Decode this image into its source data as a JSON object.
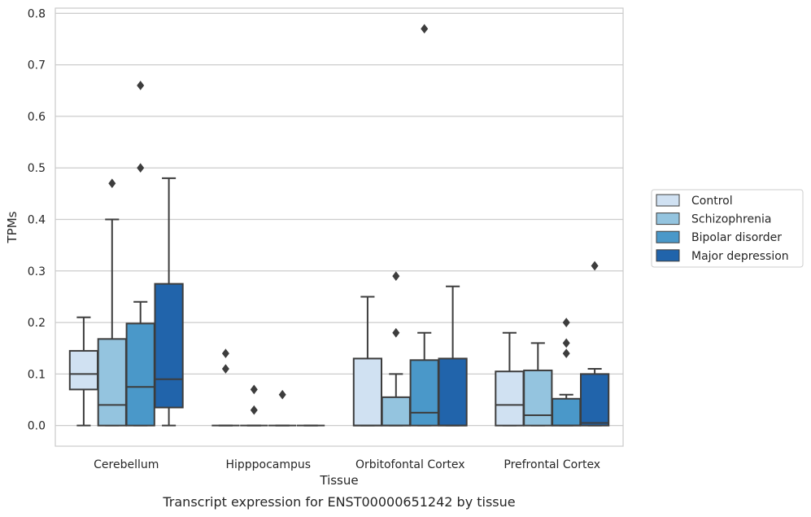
{
  "chart_data": {
    "type": "boxplot",
    "caption": "Transcript expression for ENST00000651242 by tissue",
    "xlabel": "Tissue",
    "ylabel": "TPMs",
    "ylim": [
      -0.04,
      0.81
    ],
    "yticks": [
      0.0,
      0.1,
      0.2,
      0.3,
      0.4,
      0.5,
      0.6,
      0.7,
      0.8
    ],
    "ytick_labels": [
      "0.0",
      "0.1",
      "0.2",
      "0.3",
      "0.4",
      "0.5",
      "0.6",
      "0.7",
      "0.8"
    ],
    "grid": true,
    "legend_position": "right",
    "categories": [
      "Cerebellum",
      "Hipppocampus",
      "Orbitofontal Cortex",
      "Prefrontal Cortex"
    ],
    "series": [
      {
        "name": "Control",
        "color": "#d0e1f2",
        "boxes": [
          {
            "whislo": 0.0,
            "q1": 0.07,
            "med": 0.1,
            "q3": 0.145,
            "whishi": 0.21,
            "fliers": []
          },
          {
            "whislo": 0.0,
            "q1": 0.0,
            "med": 0.0,
            "q3": 0.0,
            "whishi": 0.0,
            "fliers": [
              0.11,
              0.14
            ]
          },
          {
            "whislo": 0.0,
            "q1": 0.0,
            "med": 0.0,
            "q3": 0.13,
            "whishi": 0.25,
            "fliers": []
          },
          {
            "whislo": 0.0,
            "q1": 0.0,
            "med": 0.04,
            "q3": 0.105,
            "whishi": 0.18,
            "fliers": []
          }
        ]
      },
      {
        "name": "Schizophrenia",
        "color": "#94c4df",
        "boxes": [
          {
            "whislo": 0.0,
            "q1": 0.0,
            "med": 0.04,
            "q3": 0.168,
            "whishi": 0.4,
            "fliers": [
              0.47
            ]
          },
          {
            "whislo": 0.0,
            "q1": 0.0,
            "med": 0.0,
            "q3": 0.0,
            "whishi": 0.0,
            "fliers": [
              0.03,
              0.07
            ]
          },
          {
            "whislo": 0.0,
            "q1": 0.0,
            "med": 0.0,
            "q3": 0.055,
            "whishi": 0.1,
            "fliers": [
              0.18,
              0.29
            ]
          },
          {
            "whislo": 0.0,
            "q1": 0.0,
            "med": 0.02,
            "q3": 0.107,
            "whishi": 0.16,
            "fliers": []
          }
        ]
      },
      {
        "name": "Bipolar disorder",
        "color": "#4a98c9",
        "boxes": [
          {
            "whislo": 0.0,
            "q1": 0.0,
            "med": 0.075,
            "q3": 0.198,
            "whishi": 0.24,
            "fliers": [
              0.5,
              0.66
            ]
          },
          {
            "whislo": 0.0,
            "q1": 0.0,
            "med": 0.0,
            "q3": 0.0,
            "whishi": 0.0,
            "fliers": [
              0.06
            ]
          },
          {
            "whislo": 0.0,
            "q1": 0.0,
            "med": 0.025,
            "q3": 0.127,
            "whishi": 0.18,
            "fliers": [
              0.77
            ]
          },
          {
            "whislo": 0.0,
            "q1": 0.0,
            "med": 0.0,
            "q3": 0.052,
            "whishi": 0.06,
            "fliers": [
              0.14,
              0.16,
              0.2
            ]
          }
        ]
      },
      {
        "name": "Major depression",
        "color": "#2164ab",
        "boxes": [
          {
            "whislo": 0.0,
            "q1": 0.035,
            "med": 0.09,
            "q3": 0.275,
            "whishi": 0.48,
            "fliers": []
          },
          {
            "whislo": 0.0,
            "q1": 0.0,
            "med": 0.0,
            "q3": 0.0,
            "whishi": 0.0,
            "fliers": []
          },
          {
            "whislo": 0.0,
            "q1": 0.0,
            "med": 0.0,
            "q3": 0.13,
            "whishi": 0.27,
            "fliers": []
          },
          {
            "whislo": 0.0,
            "q1": 0.0,
            "med": 0.005,
            "q3": 0.1,
            "whishi": 0.11,
            "fliers": [
              0.31
            ]
          }
        ]
      }
    ]
  }
}
